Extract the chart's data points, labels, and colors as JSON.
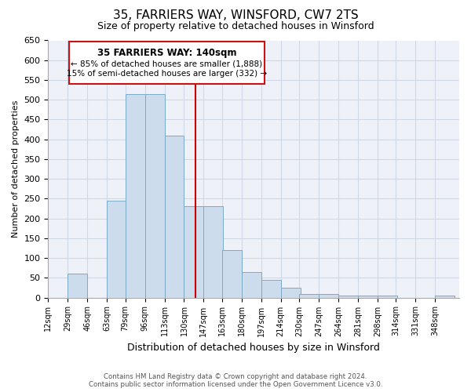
{
  "title1": "35, FARRIERS WAY, WINSFORD, CW7 2TS",
  "title2": "Size of property relative to detached houses in Winsford",
  "xlabel": "Distribution of detached houses by size in Winsford",
  "ylabel": "Number of detached properties",
  "bin_labels": [
    "12sqm",
    "29sqm",
    "46sqm",
    "63sqm",
    "79sqm",
    "96sqm",
    "113sqm",
    "130sqm",
    "147sqm",
    "163sqm",
    "180sqm",
    "197sqm",
    "214sqm",
    "230sqm",
    "247sqm",
    "264sqm",
    "281sqm",
    "298sqm",
    "314sqm",
    "331sqm",
    "348sqm"
  ],
  "bar_heights": [
    0,
    60,
    0,
    245,
    515,
    515,
    410,
    230,
    230,
    120,
    65,
    45,
    25,
    10,
    10,
    5,
    5,
    5,
    0,
    0,
    5
  ],
  "bar_color": "#ccdcec",
  "bar_edge_color": "#7aaac8",
  "vline_color": "#cc0000",
  "ylim": [
    0,
    650
  ],
  "yticks": [
    0,
    50,
    100,
    150,
    200,
    250,
    300,
    350,
    400,
    450,
    500,
    550,
    600,
    650
  ],
  "annotation_title": "35 FARRIERS WAY: 140sqm",
  "annotation_line1": "← 85% of detached houses are smaller (1,888)",
  "annotation_line2": "15% of semi-detached houses are larger (332) →",
  "footer1": "Contains HM Land Registry data © Crown copyright and database right 2024.",
  "footer2": "Contains public sector information licensed under the Open Government Licence v3.0.",
  "bg_color": "#eef2f8",
  "grid_color": "#d0d8e8"
}
